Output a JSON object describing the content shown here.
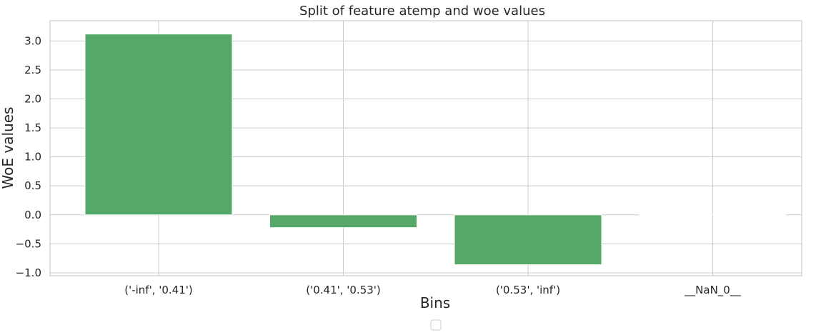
{
  "chart_data": {
    "type": "bar",
    "title": "Split of feature atemp and woe values",
    "xlabel": "Bins",
    "ylabel": "WoE values",
    "categories": [
      "('-inf', '0.41')",
      "('0.41', '0.53')",
      "('0.53', 'inf')",
      "__NaN_0__"
    ],
    "values": [
      3.12,
      -0.22,
      -0.86,
      0.0
    ],
    "ylim": [
      -1.05,
      3.35
    ],
    "yticks": [
      -1.0,
      -0.5,
      0.0,
      0.5,
      1.0,
      1.5,
      2.0,
      2.5,
      3.0
    ],
    "ytick_labels": [
      "−1.0",
      "−0.5",
      "0.0",
      "0.5",
      "1.0",
      "1.5",
      "2.0",
      "2.5",
      "3.0"
    ],
    "grid": true,
    "legend": "bottom-center, empty",
    "colors": {
      "bar": "#55a868",
      "grid": "#cccccc",
      "text": "#262626",
      "background": "#ffffff"
    }
  }
}
